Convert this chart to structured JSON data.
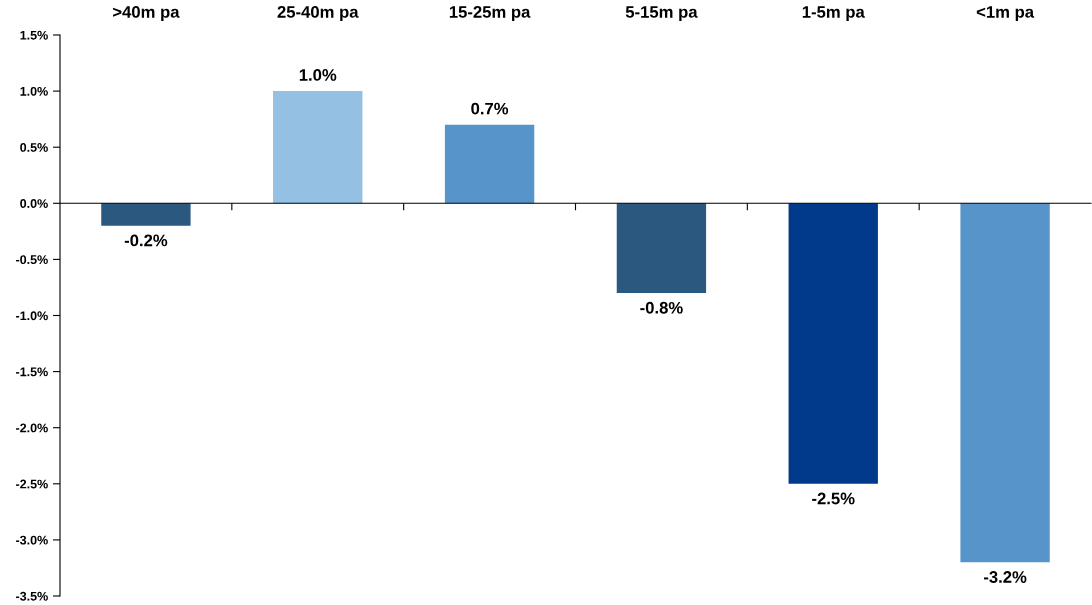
{
  "chart_data": {
    "type": "bar",
    "categories": [
      ">40m pa",
      "25-40m pa",
      "15-25m pa",
      "5-15m pa",
      "1-5m pa",
      "<1m pa"
    ],
    "values": [
      -0.2,
      1.0,
      0.7,
      -0.8,
      -2.5,
      -3.2
    ],
    "colors": [
      "#2a587f",
      "#93c0e3",
      "#5794ca",
      "#2a587f",
      "#013a8b",
      "#5794ca"
    ],
    "value_labels": [
      "-0.2%",
      "1.0%",
      "0.7%",
      "-0.8%",
      "-2.5%",
      "-3.2%"
    ],
    "ylim": [
      -3.5,
      1.5
    ],
    "yticks": [
      {
        "value": 1.5,
        "label": "1.5%"
      },
      {
        "value": 1.0,
        "label": "1.0%"
      },
      {
        "value": 0.5,
        "label": "0.5%"
      },
      {
        "value": 0,
        "label": "0.0%"
      },
      {
        "value": -0.5,
        "label": "-0.5%"
      },
      {
        "value": -1.0,
        "label": "-1.0%"
      },
      {
        "value": -1.5,
        "label": "-1.5%"
      },
      {
        "value": -2.0,
        "label": "-2.0%"
      },
      {
        "value": -2.5,
        "label": "-2.5%"
      },
      {
        "value": -3.0,
        "label": "-3.0%"
      },
      {
        "value": -3.5,
        "label": "-3.5%"
      }
    ],
    "legend": false
  }
}
